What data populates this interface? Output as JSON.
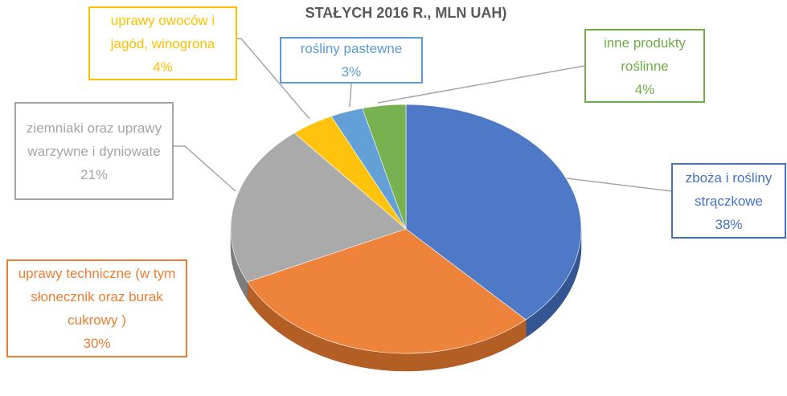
{
  "chart_data": {
    "type": "pie",
    "title": "STAŁYCH 2016 R., MLN UAH)",
    "categories": [
      "zboża i rośliny strączkowe",
      "uprawy techniczne (w tym słonecznik oraz burak cukrowy )",
      "ziemniaki oraz uprawy warzywne i dyniowate",
      "uprawy owoców i jagód, winogrona",
      "rośliny pastewne",
      "inne produkty roślinne"
    ],
    "values": [
      38,
      30,
      21,
      4,
      3,
      4
    ],
    "value_labels": [
      "38%",
      "30%",
      "21%",
      "4%",
      "3%",
      "4%"
    ],
    "colors": [
      "#4472c4",
      "#ed7d31",
      "#a5a5a5",
      "#ffc000",
      "#5b9bd5",
      "#70ad47"
    ]
  }
}
